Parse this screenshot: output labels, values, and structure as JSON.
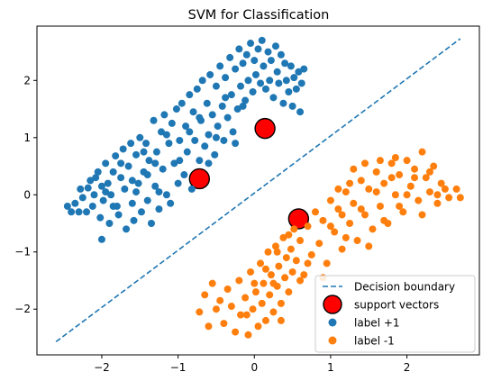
{
  "chart_data": {
    "type": "scatter",
    "title": "SVM for Classification",
    "xlabel": "",
    "ylabel": "",
    "xlim": [
      -2.85,
      2.95
    ],
    "ylim": [
      -2.8,
      2.95
    ],
    "xticks": [
      -2,
      -1,
      0,
      1,
      2
    ],
    "yticks": [
      -2,
      -1,
      0,
      1,
      2
    ],
    "xtick_labels": [
      "−2",
      "−1",
      "0",
      "1",
      "2"
    ],
    "ytick_labels": [
      "−2",
      "−1",
      "0",
      "1",
      "2"
    ],
    "grid": false,
    "legend": {
      "placement": "lower-right",
      "entries": [
        "Decision boundary",
        "support vectors",
        "label +1",
        "label -1"
      ]
    },
    "decision_boundary": {
      "name": "Decision boundary",
      "x": [
        -2.6,
        2.7
      ],
      "y": [
        -2.57,
        2.73
      ],
      "color": "#1f77b4",
      "style": "dashed"
    },
    "support_vectors": {
      "name": "support vectors",
      "color": "#ff0000",
      "points": [
        {
          "x": -0.72,
          "y": 0.28
        },
        {
          "x": 0.14,
          "y": 1.16
        },
        {
          "x": 0.58,
          "y": -0.42
        }
      ]
    },
    "series": [
      {
        "name": "label +1",
        "color": "#1f77b4",
        "points": [
          [
            -2.45,
            -0.2
          ],
          [
            -2.4,
            -0.3
          ],
          [
            -2.35,
            -0.15
          ],
          [
            -2.3,
            -0.3
          ],
          [
            -2.28,
            0.1
          ],
          [
            -2.25,
            -0.05
          ],
          [
            -2.2,
            -0.3
          ],
          [
            -2.18,
            0.12
          ],
          [
            -2.15,
            0.25
          ],
          [
            -2.1,
            0.0
          ],
          [
            -2.08,
            0.3
          ],
          [
            -2.05,
            0.4
          ],
          [
            -2.02,
            -0.4
          ],
          [
            -2.0,
            0.15
          ],
          [
            -1.98,
            -0.1
          ],
          [
            -1.95,
            0.55
          ],
          [
            -1.92,
            0.2
          ],
          [
            -1.9,
            -0.5
          ],
          [
            -1.88,
            0.0
          ],
          [
            -1.85,
            0.4
          ],
          [
            -1.82,
            0.68
          ],
          [
            -1.8,
            -0.2
          ],
          [
            -1.78,
            -0.35
          ],
          [
            -1.75,
            0.3
          ],
          [
            -1.72,
            0.8
          ],
          [
            -1.7,
            0.1
          ],
          [
            -1.68,
            -0.6
          ],
          [
            -1.65,
            0.5
          ],
          [
            -1.62,
            0.9
          ],
          [
            -1.6,
            -0.15
          ],
          [
            -1.58,
            -0.45
          ],
          [
            -1.55,
            0.7
          ],
          [
            -1.52,
            0.2
          ],
          [
            -1.5,
            1.0
          ],
          [
            -1.48,
            -0.3
          ],
          [
            -1.45,
            0.4
          ],
          [
            -1.42,
            0.9
          ],
          [
            -1.4,
            -0.1
          ],
          [
            -1.38,
            0.6
          ],
          [
            -1.35,
            -0.5
          ],
          [
            -1.32,
            1.3
          ],
          [
            -1.3,
            0.15
          ],
          [
            -1.28,
            0.75
          ],
          [
            -1.25,
            -0.25
          ],
          [
            -1.22,
            1.1
          ],
          [
            -1.2,
            0.45
          ],
          [
            -1.18,
            1.4
          ],
          [
            -1.15,
            0.0
          ],
          [
            -1.12,
            0.9
          ],
          [
            -1.1,
            -0.15
          ],
          [
            -1.08,
            1.25
          ],
          [
            -1.05,
            0.55
          ],
          [
            -1.02,
            1.5
          ],
          [
            -1.0,
            0.2
          ],
          [
            -0.98,
            0.95
          ],
          [
            -0.95,
            1.6
          ],
          [
            -0.92,
            0.35
          ],
          [
            -0.9,
            1.2
          ],
          [
            -0.88,
            0.75
          ],
          [
            -0.85,
            1.75
          ],
          [
            -0.82,
            0.1
          ],
          [
            -0.8,
            1.45
          ],
          [
            -0.78,
            0.95
          ],
          [
            -0.75,
            1.85
          ],
          [
            -0.72,
            0.6
          ],
          [
            -0.7,
            1.3
          ],
          [
            -0.68,
            2.0
          ],
          [
            -0.65,
            0.85
          ],
          [
            -0.62,
            1.6
          ],
          [
            -0.6,
            1.05
          ],
          [
            -0.58,
            2.1
          ],
          [
            -0.55,
            1.4
          ],
          [
            -0.52,
            0.7
          ],
          [
            -0.5,
            1.9
          ],
          [
            -0.48,
            1.2
          ],
          [
            -0.45,
            2.25
          ],
          [
            -0.42,
            1.55
          ],
          [
            -0.4,
            0.95
          ],
          [
            -0.38,
            2.05
          ],
          [
            -0.35,
            1.35
          ],
          [
            -0.32,
            2.4
          ],
          [
            -0.3,
            1.75
          ],
          [
            -0.28,
            1.1
          ],
          [
            -0.25,
            2.2
          ],
          [
            -0.22,
            1.5
          ],
          [
            -0.2,
            2.55
          ],
          [
            -0.18,
            1.9
          ],
          [
            -0.15,
            2.3
          ],
          [
            -0.12,
            1.65
          ],
          [
            -0.1,
            2.45
          ],
          [
            -0.08,
            2.0
          ],
          [
            -0.05,
            2.65
          ],
          [
            -0.02,
            1.8
          ],
          [
            0.0,
            2.35
          ],
          [
            0.02,
            2.1
          ],
          [
            0.05,
            2.55
          ],
          [
            0.08,
            1.95
          ],
          [
            0.1,
            2.7
          ],
          [
            0.12,
            2.25
          ],
          [
            0.15,
            1.85
          ],
          [
            0.18,
            2.5
          ],
          [
            0.2,
            2.0
          ],
          [
            0.22,
            2.35
          ],
          [
            0.25,
            1.7
          ],
          [
            0.28,
            2.6
          ],
          [
            0.3,
            2.15
          ],
          [
            0.32,
            1.95
          ],
          [
            0.35,
            2.45
          ],
          [
            0.38,
            1.6
          ],
          [
            0.4,
            2.3
          ],
          [
            0.42,
            2.0
          ],
          [
            0.45,
            1.8
          ],
          [
            0.48,
            2.25
          ],
          [
            0.5,
            1.55
          ],
          [
            0.52,
            2.05
          ],
          [
            0.55,
            1.85
          ],
          [
            0.58,
            2.15
          ],
          [
            0.6,
            1.45
          ],
          [
            0.62,
            1.95
          ],
          [
            0.65,
            2.2
          ],
          [
            -1.3,
            0.55
          ],
          [
            -1.15,
            1.05
          ],
          [
            -0.98,
            0.6
          ],
          [
            -0.85,
            1.1
          ],
          [
            -0.72,
            1.35
          ],
          [
            -0.6,
            0.55
          ],
          [
            -0.5,
            1.0
          ],
          [
            -0.38,
            1.7
          ],
          [
            -0.25,
            0.9
          ],
          [
            -0.15,
            1.55
          ],
          [
            -2.12,
            -0.2
          ],
          [
            -1.95,
            0.05
          ],
          [
            -1.75,
            0.55
          ],
          [
            -1.6,
            0.25
          ],
          [
            -1.45,
            0.75
          ],
          [
            -2.0,
            -0.78
          ],
          [
            -1.85,
            -0.2
          ],
          [
            -1.55,
            0.05
          ],
          [
            -1.4,
            0.35
          ],
          [
            -1.25,
            0.05
          ]
        ]
      },
      {
        "name": "label -1",
        "color": "#ff7f0e",
        "points": [
          [
            -0.72,
            -2.05
          ],
          [
            -0.65,
            -1.75
          ],
          [
            -0.6,
            -2.3
          ],
          [
            -0.55,
            -1.55
          ],
          [
            -0.5,
            -2.0
          ],
          [
            -0.45,
            -1.85
          ],
          [
            -0.4,
            -2.25
          ],
          [
            -0.35,
            -1.65
          ],
          [
            -0.3,
            -1.95
          ],
          [
            -0.25,
            -2.4
          ],
          [
            -0.2,
            -1.5
          ],
          [
            -0.18,
            -2.1
          ],
          [
            -0.12,
            -1.8
          ],
          [
            -0.08,
            -2.45
          ],
          [
            -0.05,
            -1.35
          ],
          [
            -0.02,
            -2.0
          ],
          [
            0.02,
            -1.7
          ],
          [
            0.05,
            -2.3
          ],
          [
            0.08,
            -1.2
          ],
          [
            0.1,
            -1.9
          ],
          [
            0.12,
            -1.55
          ],
          [
            0.15,
            -2.2
          ],
          [
            0.18,
            -1.0
          ],
          [
            0.2,
            -1.75
          ],
          [
            0.22,
            -1.4
          ],
          [
            0.25,
            -2.05
          ],
          [
            0.28,
            -0.9
          ],
          [
            0.3,
            -1.6
          ],
          [
            0.32,
            -1.25
          ],
          [
            0.35,
            -1.9
          ],
          [
            0.38,
            -0.75
          ],
          [
            0.4,
            -1.45
          ],
          [
            0.42,
            -1.1
          ],
          [
            0.45,
            -1.7
          ],
          [
            0.48,
            -0.95
          ],
          [
            0.5,
            -1.35
          ],
          [
            0.52,
            -0.6
          ],
          [
            0.55,
            -1.15
          ],
          [
            0.6,
            -0.8
          ],
          [
            0.65,
            -1.4
          ],
          [
            0.7,
            -0.55
          ],
          [
            0.75,
            -1.05
          ],
          [
            0.8,
            -0.3
          ],
          [
            0.85,
            -0.85
          ],
          [
            0.9,
            -0.45
          ],
          [
            0.95,
            -1.2
          ],
          [
            1.0,
            -0.1
          ],
          [
            1.05,
            -0.65
          ],
          [
            1.1,
            -0.25
          ],
          [
            1.15,
            -0.95
          ],
          [
            1.2,
            0.05
          ],
          [
            1.25,
            -0.5
          ],
          [
            1.3,
            -0.15
          ],
          [
            1.35,
            -0.8
          ],
          [
            1.4,
            0.25
          ],
          [
            1.45,
            -0.35
          ],
          [
            1.5,
            0.1
          ],
          [
            1.55,
            -0.6
          ],
          [
            1.6,
            0.4
          ],
          [
            1.65,
            -0.2
          ],
          [
            1.7,
            0.2
          ],
          [
            1.75,
            -0.5
          ],
          [
            1.8,
            0.55
          ],
          [
            1.85,
            0.0
          ],
          [
            1.9,
            0.35
          ],
          [
            1.95,
            -0.3
          ],
          [
            2.0,
            0.6
          ],
          [
            2.05,
            0.15
          ],
          [
            2.1,
            0.45
          ],
          [
            2.15,
            -0.1
          ],
          [
            2.2,
            0.75
          ],
          [
            2.25,
            0.3
          ],
          [
            2.3,
            0.05
          ],
          [
            2.35,
            0.5
          ],
          [
            2.4,
            -0.15
          ],
          [
            2.45,
            0.2
          ],
          [
            2.5,
            0.1
          ],
          [
            2.55,
            -0.05
          ],
          [
            2.65,
            0.1
          ],
          [
            2.7,
            -0.05
          ],
          [
            1.0,
            -0.55
          ],
          [
            1.1,
            0.1
          ],
          [
            1.2,
            -0.75
          ],
          [
            1.3,
            0.45
          ],
          [
            1.4,
            -0.25
          ],
          [
            1.5,
            -0.9
          ],
          [
            1.6,
            0.05
          ],
          [
            1.7,
            -0.45
          ],
          [
            1.8,
            0.3
          ],
          [
            1.9,
            -0.2
          ],
          [
            2.0,
            0.0
          ],
          [
            2.1,
            0.3
          ],
          [
            2.2,
            -0.35
          ],
          [
            2.3,
            0.4
          ],
          [
            2.4,
            0.0
          ],
          [
            0.3,
            -1.0
          ],
          [
            0.45,
            -0.7
          ],
          [
            0.6,
            -1.5
          ],
          [
            0.7,
            -1.2
          ],
          [
            0.9,
            -1.45
          ],
          [
            0.35,
            -2.2
          ],
          [
            0.15,
            -1.3
          ],
          [
            -0.1,
            -2.1
          ],
          [
            0.0,
            -1.55
          ],
          [
            0.25,
            -1.55
          ],
          [
            1.15,
            -0.35
          ],
          [
            1.25,
            0.2
          ],
          [
            1.45,
            0.55
          ],
          [
            1.65,
            0.6
          ],
          [
            1.85,
            0.65
          ]
        ]
      }
    ]
  }
}
